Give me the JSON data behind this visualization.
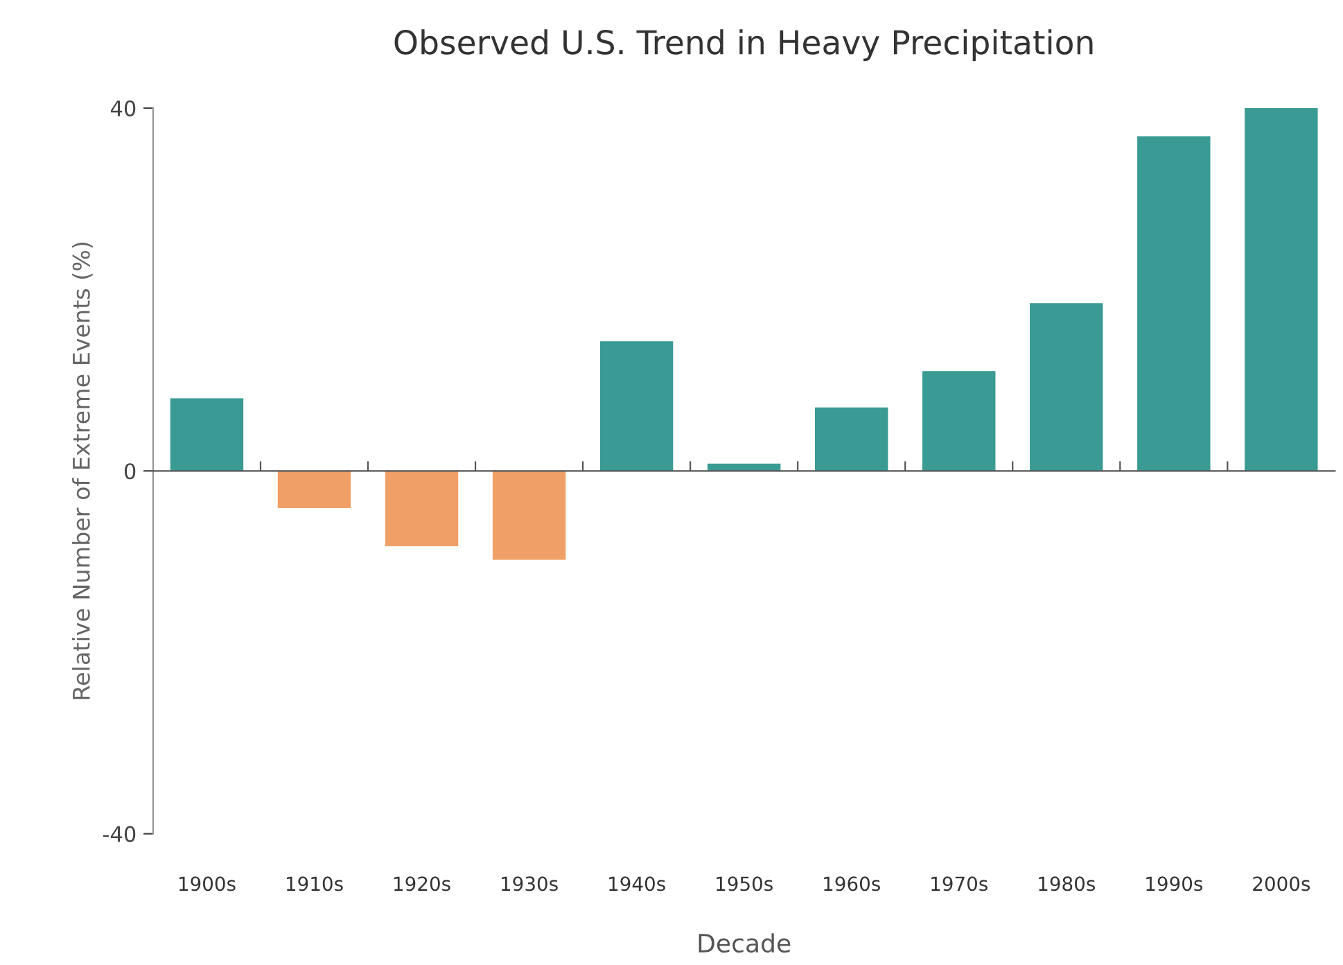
{
  "chart_data": {
    "type": "bar",
    "title": "Observed U.S. Trend in Heavy Precipitation",
    "xlabel": "Decade",
    "ylabel": "Relative Number of Extreme Events (%)",
    "categories": [
      "1900s",
      "1910s",
      "1920s",
      "1930s",
      "1940s",
      "1950s",
      "1960s",
      "1970s",
      "1980s",
      "1990s",
      "2000s"
    ],
    "values": [
      8,
      -4.1,
      -8.3,
      -9.8,
      14.3,
      0.8,
      7,
      11,
      18.5,
      36.9,
      40
    ],
    "colors": [
      "#3a9a94",
      "#f0a066",
      "#f0a066",
      "#f0a066",
      "#3a9a94",
      "#3a9a94",
      "#3a9a94",
      "#3a9a94",
      "#3a9a94",
      "#3a9a94",
      "#3a9a94"
    ],
    "ylim": [
      -40,
      40
    ],
    "yticks": [
      -40,
      0,
      40
    ]
  }
}
